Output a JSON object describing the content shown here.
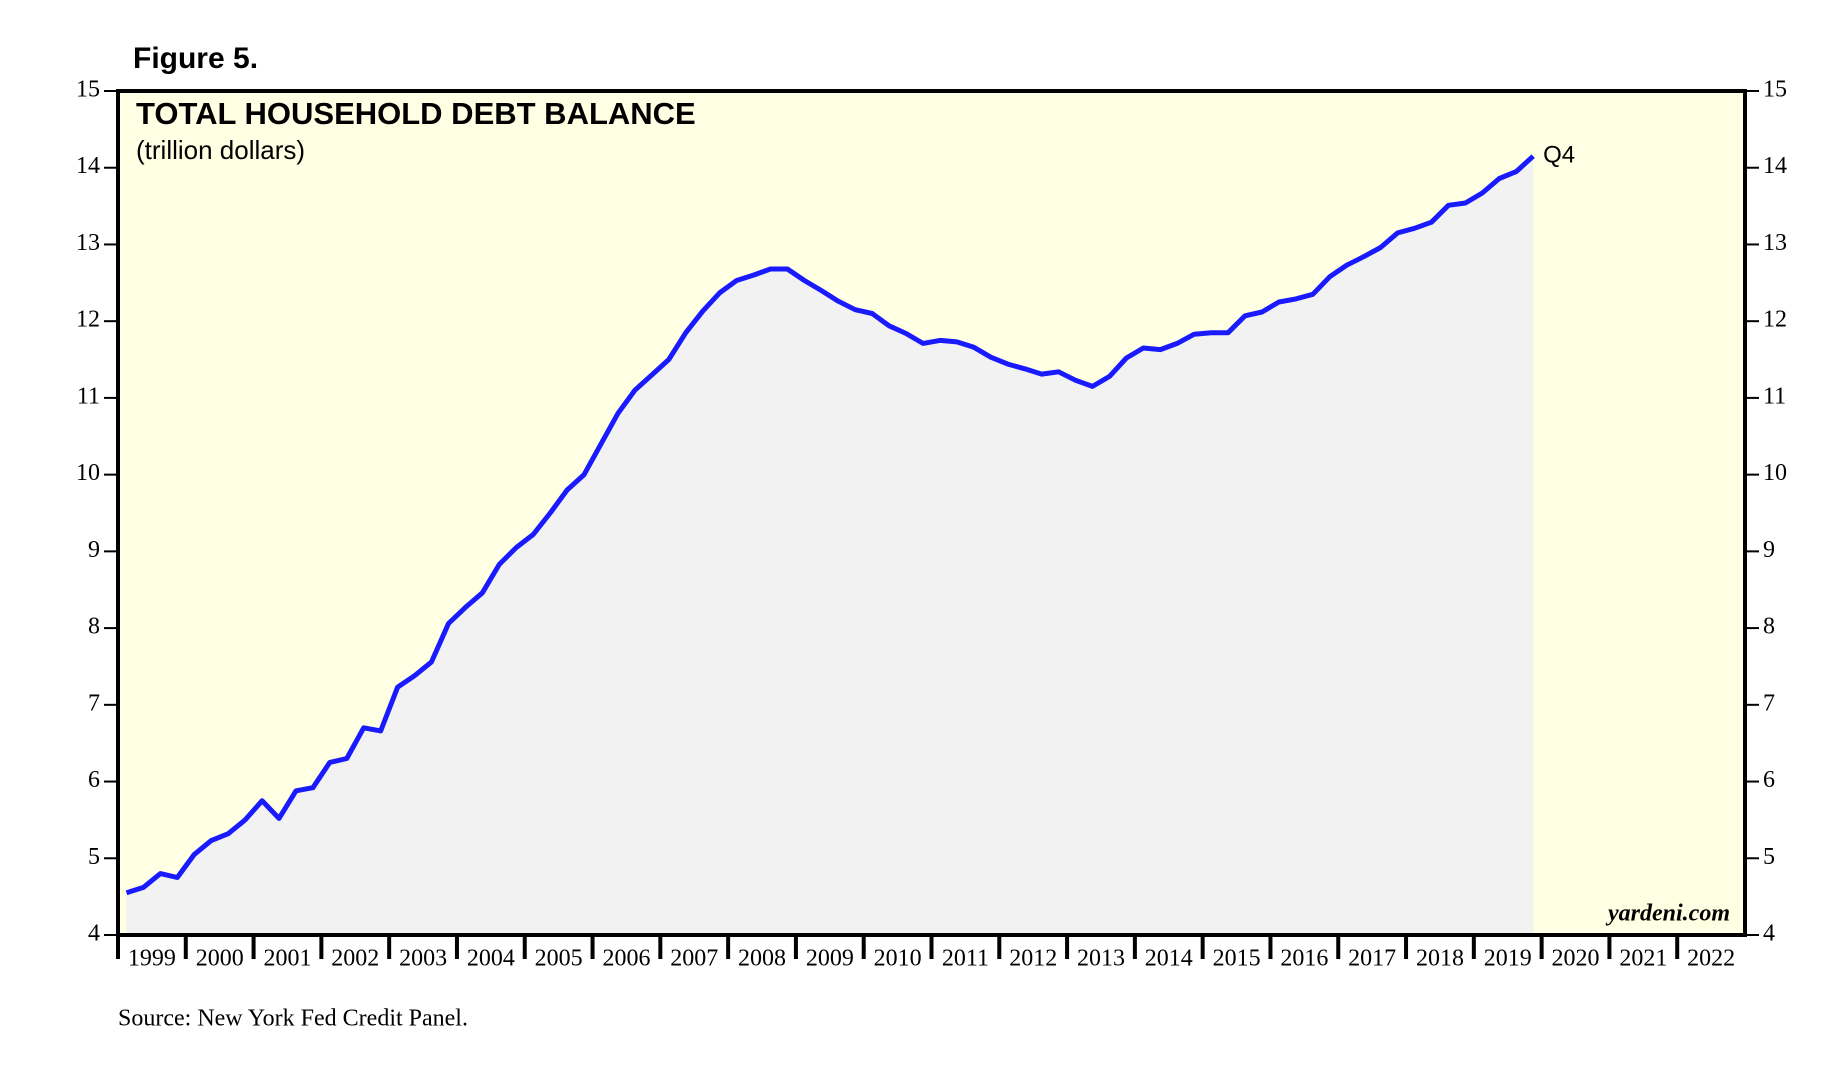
{
  "chart_data": {
    "type": "area-line",
    "figure_label": "Figure 5.",
    "title": "TOTAL HOUSEHOLD DEBT BALANCE",
    "subtitle": "(trillion dollars)",
    "annotations": {
      "last_point": "Q4",
      "brand": "yardeni.com"
    },
    "source": "Source: New York Fed Credit Panel.",
    "color": "#1a1aff",
    "area_color": "#f2f2f2",
    "background_color": "#ffffe3",
    "x": [
      1999.125,
      1999.375,
      1999.625,
      1999.875,
      2000.125,
      2000.375,
      2000.625,
      2000.875,
      2001.125,
      2001.375,
      2001.625,
      2001.875,
      2002.125,
      2002.375,
      2002.625,
      2002.875,
      2003.125,
      2003.375,
      2003.625,
      2003.875,
      2004.125,
      2004.375,
      2004.625,
      2004.875,
      2005.125,
      2005.375,
      2005.625,
      2005.875,
      2006.125,
      2006.375,
      2006.625,
      2006.875,
      2007.125,
      2007.375,
      2007.625,
      2007.875,
      2008.125,
      2008.375,
      2008.625,
      2008.875,
      2009.125,
      2009.375,
      2009.625,
      2009.875,
      2010.125,
      2010.375,
      2010.625,
      2010.875,
      2011.125,
      2011.375,
      2011.625,
      2011.875,
      2012.125,
      2012.375,
      2012.625,
      2012.875,
      2013.125,
      2013.375,
      2013.625,
      2013.875,
      2014.125,
      2014.375,
      2014.625,
      2014.875,
      2015.125,
      2015.375,
      2015.625,
      2015.875,
      2016.125,
      2016.375,
      2016.625,
      2016.875,
      2017.125,
      2017.375,
      2017.625,
      2017.875,
      2018.125,
      2018.375,
      2018.625,
      2018.875,
      2019.125,
      2019.375,
      2019.625,
      2019.875
    ],
    "values": [
      4.55,
      4.62,
      4.8,
      4.75,
      5.05,
      5.23,
      5.32,
      5.5,
      5.75,
      5.52,
      5.88,
      5.92,
      6.25,
      6.3,
      6.7,
      6.66,
      7.23,
      7.38,
      7.56,
      8.06,
      8.27,
      8.46,
      8.83,
      9.05,
      9.22,
      9.5,
      9.8,
      10.0,
      10.4,
      10.8,
      11.1,
      11.3,
      11.5,
      11.85,
      12.13,
      12.37,
      12.53,
      12.6,
      12.68,
      12.68,
      12.53,
      12.4,
      12.26,
      12.15,
      12.1,
      11.94,
      11.84,
      11.71,
      11.75,
      11.73,
      11.66,
      11.53,
      11.44,
      11.38,
      11.31,
      11.34,
      11.23,
      11.15,
      11.28,
      11.52,
      11.65,
      11.63,
      11.71,
      11.83,
      11.85,
      11.85,
      12.07,
      12.12,
      12.25,
      12.29,
      12.35,
      12.58,
      12.73,
      12.84,
      12.96,
      13.15,
      13.21,
      13.29,
      13.51,
      13.54,
      13.67,
      13.86,
      13.95,
      14.15
    ],
    "xlim": [
      1999,
      2023
    ],
    "xticks": [
      1999,
      2000,
      2001,
      2002,
      2003,
      2004,
      2005,
      2006,
      2007,
      2008,
      2009,
      2010,
      2011,
      2012,
      2013,
      2014,
      2015,
      2016,
      2017,
      2018,
      2019,
      2020,
      2021,
      2022
    ],
    "ylim": [
      4,
      15
    ],
    "yticks": [
      4,
      5,
      6,
      7,
      8,
      9,
      10,
      11,
      12,
      13,
      14,
      15
    ]
  }
}
